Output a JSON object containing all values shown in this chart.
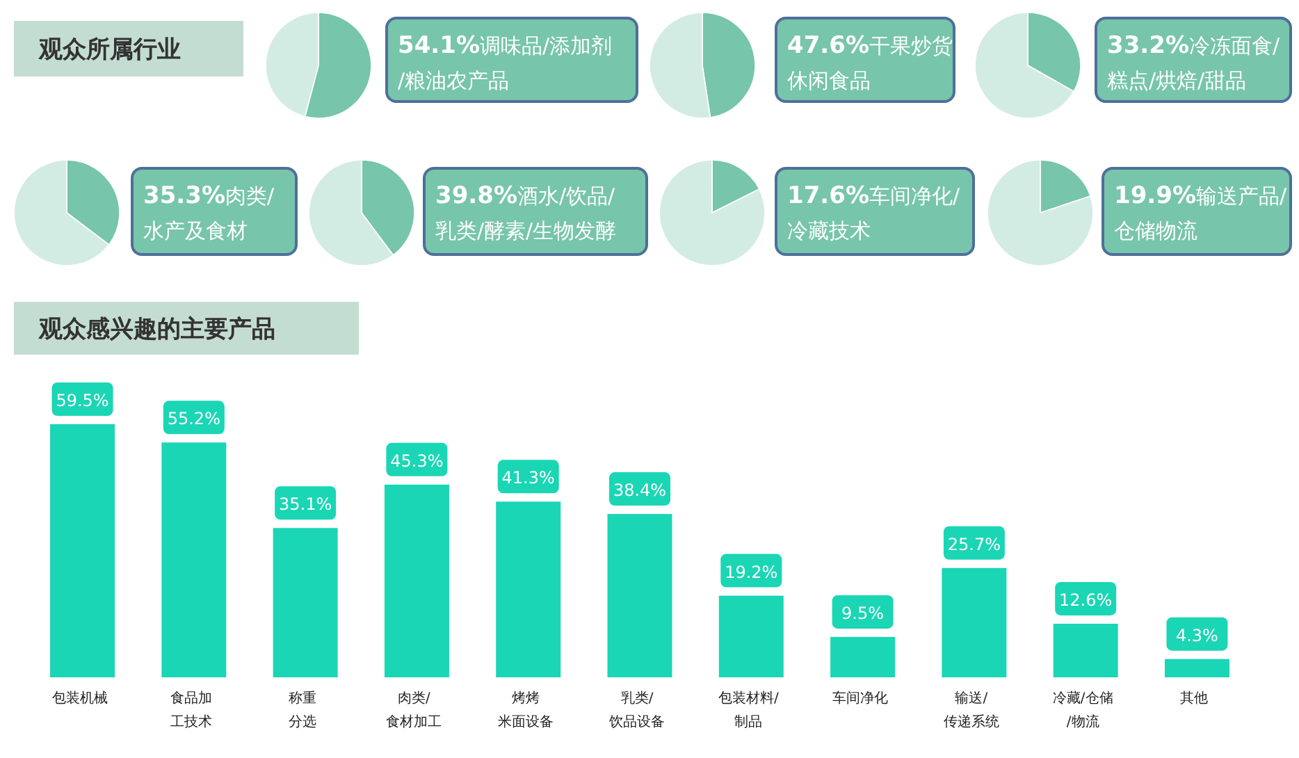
{
  "chart_data": [
    {
      "type": "pie",
      "title": "观众所属行业",
      "categories": [
        "调味品/添加剂/粮油农产品",
        null
      ],
      "values": [
        54.1,
        45.9
      ],
      "value_labels": [
        "54.1%",
        null
      ],
      "colors": [
        "#77c5aa",
        "#d3ece3"
      ]
    },
    {
      "type": "pie",
      "categories": [
        "干果炒货休闲食品",
        null
      ],
      "values": [
        47.6,
        52.4
      ],
      "value_labels": [
        "47.6%",
        null
      ],
      "colors": [
        "#77c5aa",
        "#d3ece3"
      ]
    },
    {
      "type": "pie",
      "categories": [
        "冷冻面食/糕点/烘焙/甜品",
        null
      ],
      "values": [
        33.2,
        66.8
      ],
      "value_labels": [
        "33.2%",
        null
      ],
      "colors": [
        "#77c5aa",
        "#d3ece3"
      ]
    },
    {
      "type": "pie",
      "categories": [
        "肉类/水产及食材",
        null
      ],
      "values": [
        35.3,
        64.7
      ],
      "value_labels": [
        "35.3%",
        null
      ],
      "colors": [
        "#77c5aa",
        "#d3ece3"
      ]
    },
    {
      "type": "pie",
      "categories": [
        "酒水/饮品/乳类/酵素/生物发酵",
        null
      ],
      "values": [
        39.8,
        60.2
      ],
      "value_labels": [
        "39.8%",
        null
      ],
      "colors": [
        "#77c5aa",
        "#d3ece3"
      ]
    },
    {
      "type": "pie",
      "categories": [
        "车间净化/冷藏技术",
        null
      ],
      "values": [
        17.6,
        82.4
      ],
      "value_labels": [
        "17.6%",
        null
      ],
      "colors": [
        "#77c5aa",
        "#d3ece3"
      ]
    },
    {
      "type": "pie",
      "categories": [
        "输送产品/仓储物流",
        null
      ],
      "values": [
        19.9,
        80.1
      ],
      "value_labels": [
        "19.9%",
        null
      ],
      "colors": [
        "#77c5aa",
        "#d3ece3"
      ]
    },
    {
      "type": "bar",
      "title": "观众感兴趣的主要产品",
      "categories": [
        "包装机械",
        "食品加工技术",
        "称重分选",
        "肉类/食材加工",
        "烤烤米面设备",
        "乳类/饮品设备",
        "包装材料/制品",
        "车间净化",
        "输送/传递系统",
        "冷藏/仓储/物流",
        "其他"
      ],
      "values": [
        59.5,
        55.2,
        35.1,
        45.3,
        41.3,
        38.4,
        19.2,
        9.5,
        25.7,
        12.6,
        4.3
      ],
      "value_labels": [
        "59.5%",
        "55.2%",
        "35.1%",
        "45.3%",
        "41.3%",
        "38.4%",
        "19.2%",
        "9.5%",
        "25.7%",
        "12.6%",
        "4.3%"
      ],
      "color": "#1ad6b4"
    }
  ]
}
